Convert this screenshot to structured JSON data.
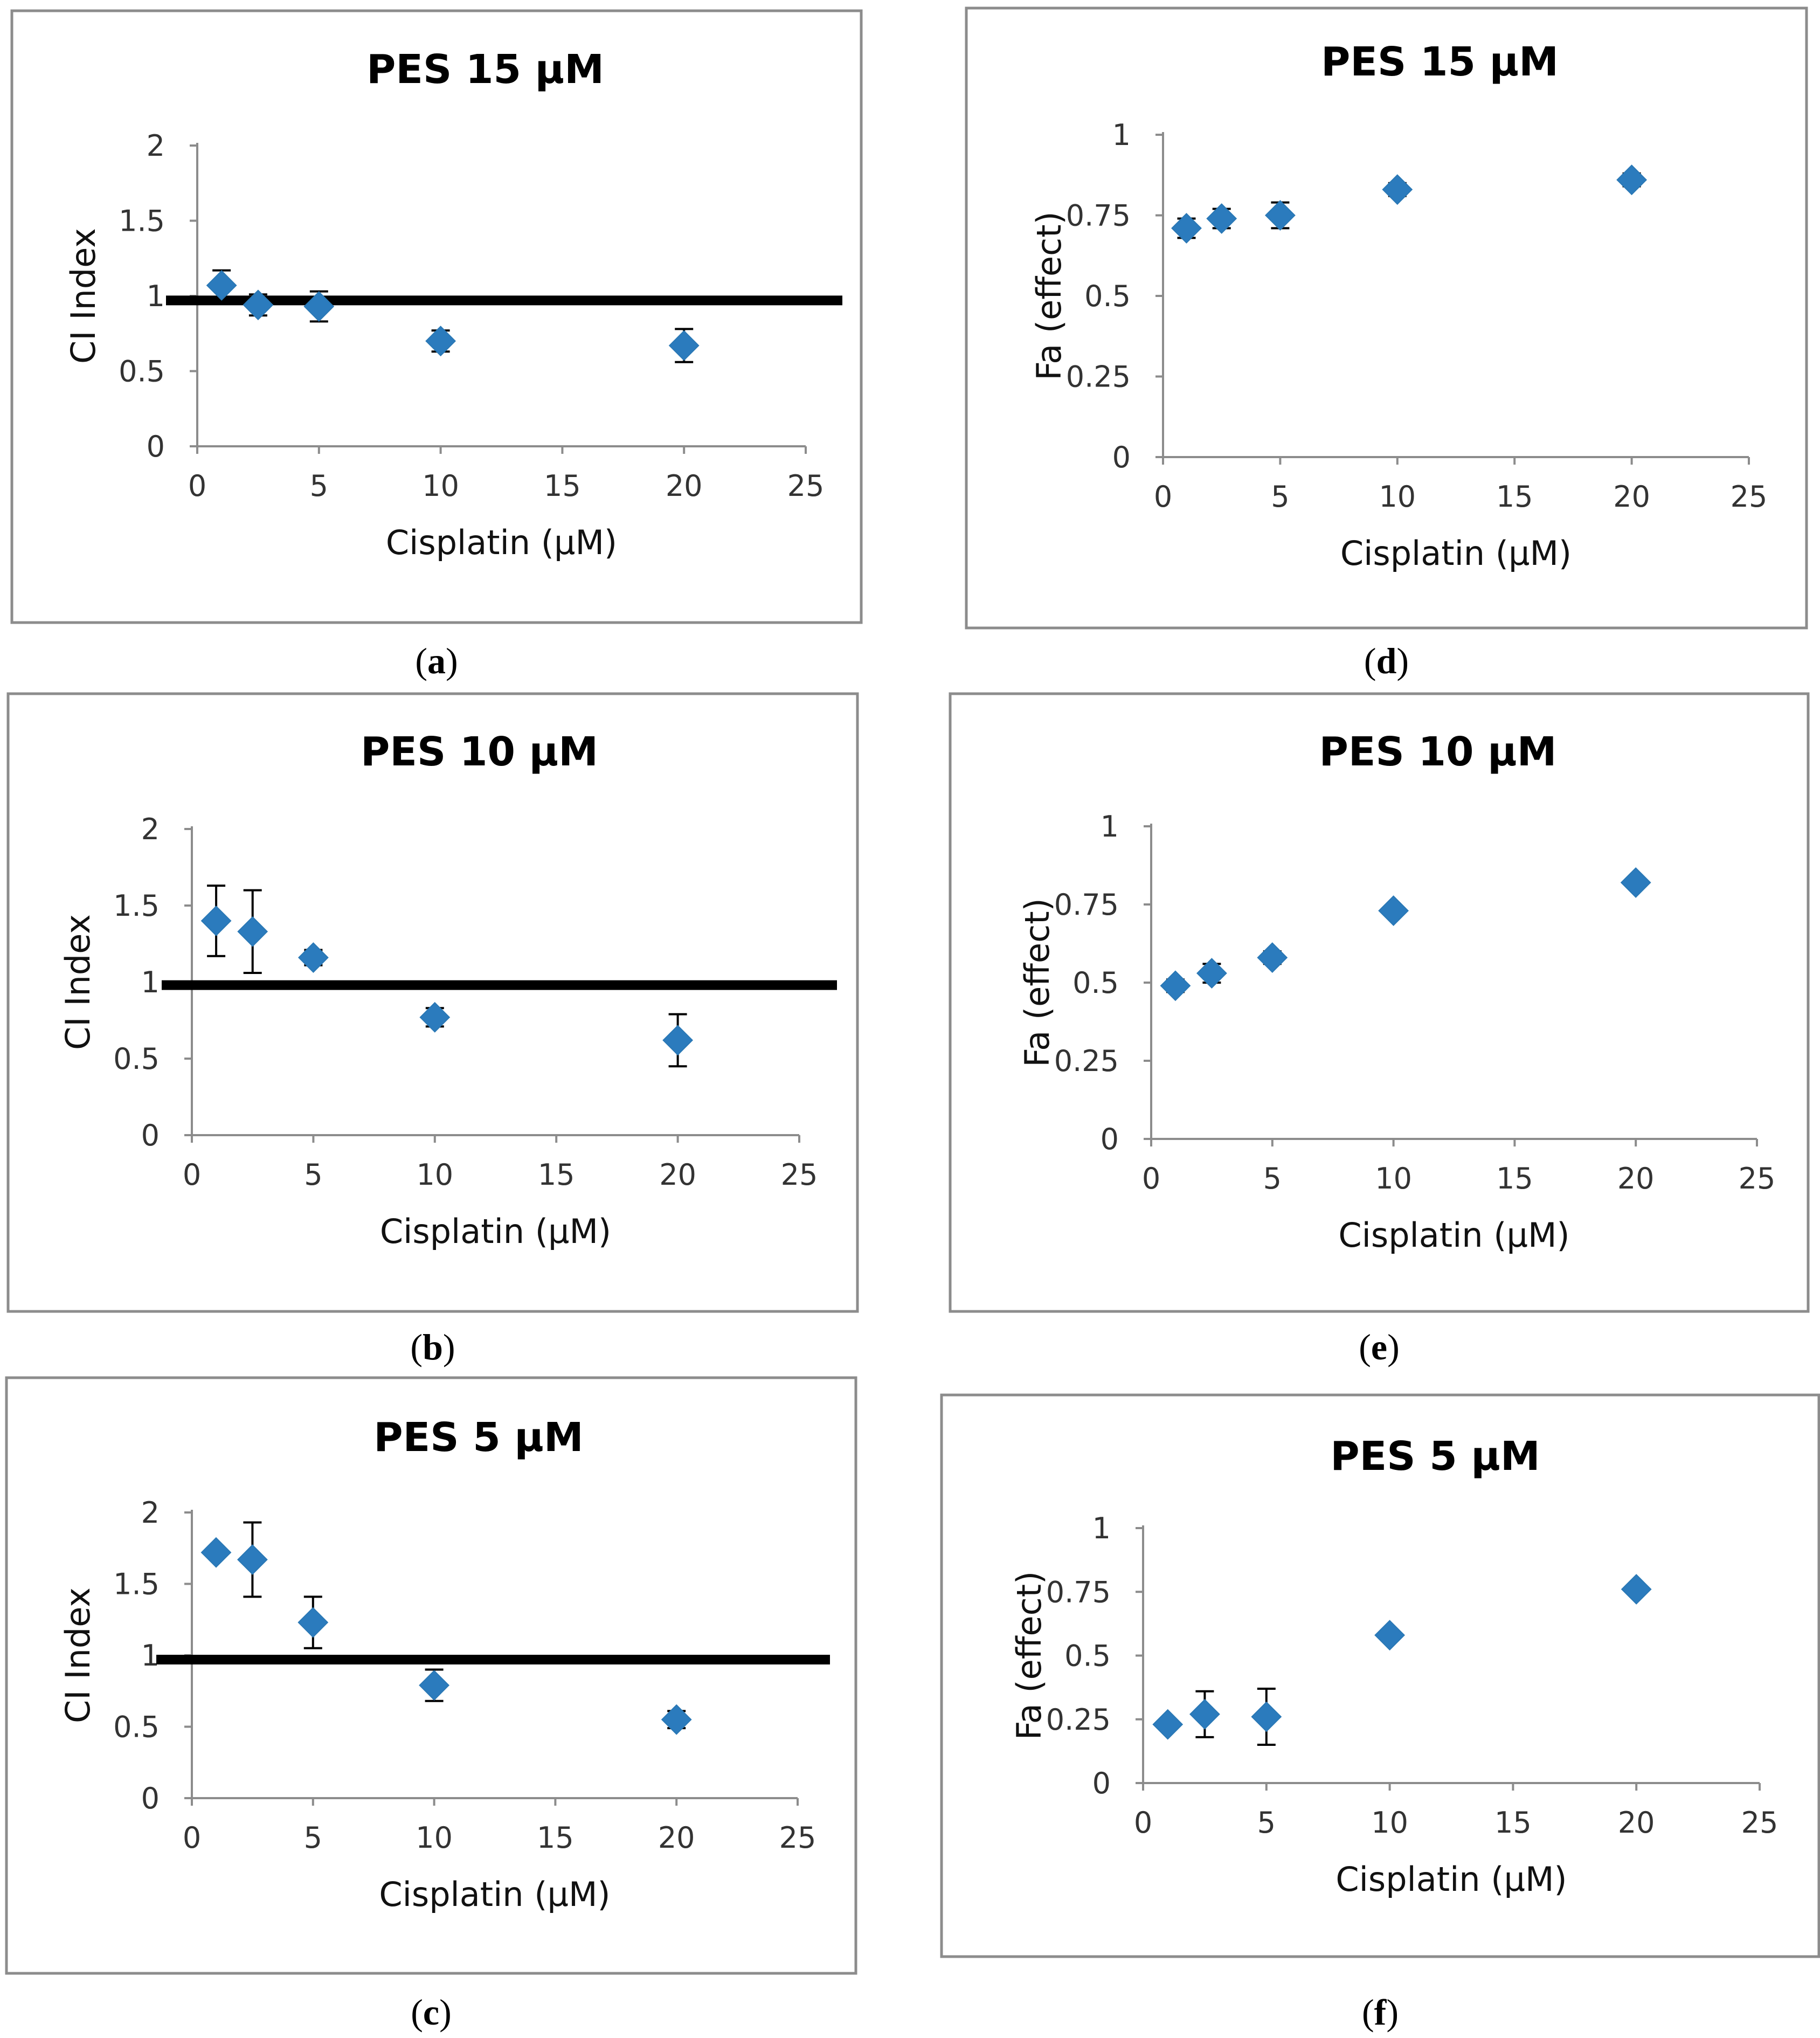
{
  "figure": {
    "marker_color": "#2b7bbd",
    "ref_line_color": "#000000",
    "panels_order": [
      "a",
      "b",
      "c",
      "d",
      "e",
      "f"
    ]
  },
  "chart_data": [
    {
      "id": "a",
      "caption": "a",
      "type": "scatter",
      "title": "PES 15 µM",
      "xlabel": "Cisplatin (µM)",
      "ylabel": "CI Index",
      "xlim": [
        0,
        25
      ],
      "ylim": [
        0,
        2
      ],
      "xticks": [
        0,
        5,
        10,
        15,
        20,
        25
      ],
      "yticks": [
        0,
        0.5,
        1,
        1.5,
        2
      ],
      "xtick_labels": [
        "0",
        "5",
        "10",
        "15",
        "20",
        "25"
      ],
      "ytick_labels": [
        "0",
        "0.5",
        "1",
        "1.5",
        "2"
      ],
      "reference_line": 0.97,
      "series": [
        {
          "name": "CI",
          "x": [
            1,
            2.5,
            5,
            10,
            20
          ],
          "y": [
            1.07,
            0.94,
            0.93,
            0.7,
            0.67
          ],
          "err": [
            0.1,
            0.07,
            0.1,
            0.07,
            0.11
          ]
        }
      ]
    },
    {
      "id": "b",
      "caption": "b",
      "type": "scatter",
      "title": "PES 10 µM",
      "xlabel": "Cisplatin (µM)",
      "ylabel": "CI Index",
      "xlim": [
        0,
        25
      ],
      "ylim": [
        0,
        2
      ],
      "xticks": [
        0,
        5,
        10,
        15,
        20,
        25
      ],
      "yticks": [
        0,
        0.5,
        1,
        1.5,
        2
      ],
      "xtick_labels": [
        "0",
        "5",
        "10",
        "15",
        "20",
        "25"
      ],
      "ytick_labels": [
        "0",
        "0.5",
        "1",
        "1.5",
        "2"
      ],
      "reference_line": 0.98,
      "series": [
        {
          "name": "CI",
          "x": [
            1,
            2.5,
            5,
            10,
            20
          ],
          "y": [
            1.4,
            1.33,
            1.16,
            0.77,
            0.62
          ],
          "err": [
            0.23,
            0.27,
            0.05,
            0.06,
            0.17
          ]
        }
      ]
    },
    {
      "id": "c",
      "caption": "c",
      "type": "scatter",
      "title": "PES 5 µM",
      "xlabel": "Cisplatin (µM)",
      "ylabel": "CI Index",
      "xlim": [
        0,
        25
      ],
      "ylim": [
        0,
        2
      ],
      "xticks": [
        0,
        5,
        10,
        15,
        20,
        25
      ],
      "yticks": [
        0,
        0.5,
        1,
        1.5,
        2
      ],
      "xtick_labels": [
        "0",
        "5",
        "10",
        "15",
        "20",
        "25"
      ],
      "ytick_labels": [
        "0",
        "0.5",
        "1",
        "1.5",
        "2"
      ],
      "reference_line": 0.97,
      "series": [
        {
          "name": "CI",
          "x": [
            1,
            2.5,
            5,
            10,
            20
          ],
          "y": [
            1.72,
            1.67,
            1.23,
            0.79,
            0.55
          ],
          "err": [
            0.03,
            0.26,
            0.18,
            0.11,
            0.06
          ]
        }
      ]
    },
    {
      "id": "d",
      "caption": "d",
      "type": "scatter",
      "title": "PES 15 µM",
      "xlabel": "Cisplatin (µM)",
      "ylabel": "Fa (effect)",
      "xlim": [
        0,
        25
      ],
      "ylim": [
        0,
        1
      ],
      "xticks": [
        0,
        5,
        10,
        15,
        20,
        25
      ],
      "yticks": [
        0,
        0.25,
        0.5,
        0.75,
        1
      ],
      "xtick_labels": [
        "0",
        "5",
        "10",
        "15",
        "20",
        "25"
      ],
      "ytick_labels": [
        "0",
        "0.25",
        "0.5",
        "0.75",
        "1"
      ],
      "reference_line": null,
      "series": [
        {
          "name": "Fa",
          "x": [
            1,
            2.5,
            5,
            10,
            20
          ],
          "y": [
            0.71,
            0.74,
            0.75,
            0.83,
            0.86
          ],
          "err": [
            0.03,
            0.03,
            0.04,
            0.02,
            0.02
          ]
        }
      ]
    },
    {
      "id": "e",
      "caption": "e",
      "type": "scatter",
      "title": "PES 10 µM",
      "xlabel": "Cisplatin (µM)",
      "ylabel": "Fa (effect)",
      "xlim": [
        0,
        25
      ],
      "ylim": [
        0,
        1
      ],
      "xticks": [
        0,
        5,
        10,
        15,
        20,
        25
      ],
      "yticks": [
        0,
        0.25,
        0.5,
        0.75,
        1
      ],
      "xtick_labels": [
        "0",
        "5",
        "10",
        "15",
        "20",
        "25"
      ],
      "ytick_labels": [
        "0",
        "0.25",
        "0.5",
        "0.75",
        "1"
      ],
      "reference_line": null,
      "series": [
        {
          "name": "Fa",
          "x": [
            1,
            2.5,
            5,
            10,
            20
          ],
          "y": [
            0.49,
            0.53,
            0.58,
            0.73,
            0.82
          ],
          "err": [
            0.02,
            0.03,
            0.02,
            0.01,
            0.01
          ]
        }
      ]
    },
    {
      "id": "f",
      "caption": "f",
      "type": "scatter",
      "title": "PES 5 µM",
      "xlabel": "Cisplatin (µM)",
      "ylabel": "Fa (effect)",
      "xlim": [
        0,
        25
      ],
      "ylim": [
        0,
        1
      ],
      "xticks": [
        0,
        5,
        10,
        15,
        20,
        25
      ],
      "yticks": [
        0,
        0.25,
        0.5,
        0.75,
        1
      ],
      "xtick_labels": [
        "0",
        "5",
        "10",
        "15",
        "20",
        "25"
      ],
      "ytick_labels": [
        "0",
        "0.25",
        "0.5",
        "0.75",
        "1"
      ],
      "reference_line": null,
      "series": [
        {
          "name": "Fa",
          "x": [
            1,
            2.5,
            5,
            10,
            20
          ],
          "y": [
            0.23,
            0.27,
            0.26,
            0.58,
            0.76
          ],
          "err": [
            0.01,
            0.09,
            0.11,
            0.02,
            0.01
          ]
        }
      ]
    }
  ]
}
